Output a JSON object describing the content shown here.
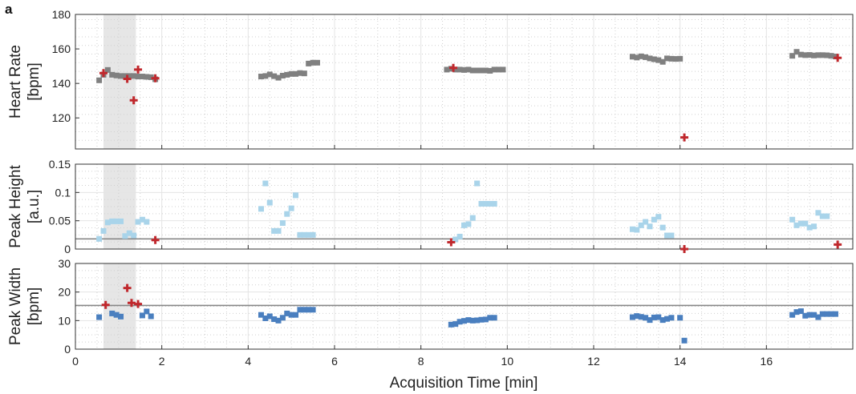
{
  "panel_label": "a",
  "colors": {
    "heart_rate": "#808080",
    "peak_height": "#a9d4ea",
    "peak_width": "#4a7fbf",
    "outlier": "#c0282d",
    "threshold": "#888888",
    "shaded_region": "#e6e6e6"
  },
  "chart_data": [
    {
      "type": "scatter",
      "ylabel": [
        "Heart Rate",
        "[bpm]"
      ],
      "ylim": [
        102,
        180
      ],
      "yticks": [
        120,
        140,
        160,
        180
      ],
      "ytick_labels": [
        "120",
        "140",
        "160",
        "180"
      ],
      "xlim": [
        0,
        18
      ],
      "grid": true,
      "shaded_region": [
        0.65,
        1.4
      ],
      "series": [
        {
          "color": "#808080",
          "marker": "square",
          "x": [
            0.55,
            0.65,
            0.75,
            0.85,
            0.95,
            1.05,
            1.15,
            1.25,
            1.35,
            1.45,
            1.55,
            1.65,
            1.75,
            1.85,
            4.3,
            4.4,
            4.5,
            4.6,
            4.7,
            4.8,
            4.9,
            5.0,
            5.1,
            5.2,
            5.3,
            5.4,
            5.5,
            5.6,
            8.6,
            8.7,
            8.8,
            8.9,
            9.0,
            9.1,
            9.2,
            9.3,
            9.4,
            9.5,
            9.6,
            9.7,
            9.8,
            9.9,
            12.9,
            13.0,
            13.1,
            13.2,
            13.3,
            13.4,
            13.5,
            13.6,
            13.7,
            13.8,
            13.9,
            14.0,
            16.6,
            16.7,
            16.8,
            16.9,
            17.0,
            17.1,
            17.2,
            17.3,
            17.4,
            17.5,
            17.6
          ],
          "y": [
            141.8,
            145,
            147.8,
            145,
            144.6,
            144.3,
            144.3,
            144.3,
            144.3,
            144,
            144,
            143.8,
            143.6,
            142.4,
            144,
            144.3,
            145.2,
            144.2,
            143.3,
            144.5,
            145,
            145.5,
            145.5,
            146,
            145.8,
            151.5,
            152,
            152,
            148,
            148.5,
            148,
            148,
            147.8,
            148,
            147.5,
            147.5,
            147.5,
            147.5,
            147.3,
            148,
            148,
            148,
            155.5,
            155,
            155.7,
            155.2,
            154.5,
            154,
            153.5,
            152.5,
            154.5,
            154.3,
            154.2,
            154.3,
            156,
            158.3,
            156.7,
            156.4,
            156.5,
            156.2,
            156.4,
            156.4,
            156.3,
            156,
            155.6
          ]
        },
        {
          "color": "#c0282d",
          "marker": "plus",
          "x": [
            0.65,
            1.2,
            1.35,
            1.45,
            1.85,
            8.75,
            14.1,
            17.65
          ],
          "y": [
            146,
            142.6,
            130.2,
            148,
            143,
            149,
            108.7,
            154.8
          ]
        }
      ]
    },
    {
      "type": "scatter",
      "ylabel": [
        "Peak Height",
        "[a.u.]"
      ],
      "ylim": [
        0,
        0.15
      ],
      "yticks": [
        0,
        0.05,
        0.1,
        0.15
      ],
      "ytick_labels": [
        "0",
        "0.05",
        "0.1",
        "0.15"
      ],
      "xlim": [
        0,
        18
      ],
      "grid": true,
      "shaded_region": [
        0.65,
        1.4
      ],
      "threshold_y": 0.018,
      "series": [
        {
          "color": "#a9d4ea",
          "marker": "square",
          "x": [
            0.55,
            0.65,
            0.75,
            0.85,
            0.95,
            1.05,
            1.15,
            1.25,
            1.35,
            1.45,
            1.55,
            1.65,
            4.3,
            4.4,
            4.5,
            4.6,
            4.7,
            4.8,
            4.9,
            5.0,
            5.1,
            5.2,
            5.3,
            5.4,
            5.5,
            8.8,
            8.9,
            9.0,
            9.1,
            9.2,
            9.3,
            9.4,
            9.5,
            9.6,
            9.7,
            12.9,
            13.0,
            13.1,
            13.2,
            13.3,
            13.4,
            13.5,
            13.6,
            13.7,
            13.8,
            16.6,
            16.7,
            16.8,
            16.9,
            17.0,
            17.1,
            17.2,
            17.3,
            17.4
          ],
          "y": [
            0.018,
            0.032,
            0.047,
            0.049,
            0.049,
            0.049,
            0.023,
            0.028,
            0.024,
            0.048,
            0.052,
            0.048,
            0.071,
            0.116,
            0.082,
            0.032,
            0.032,
            0.046,
            0.062,
            0.072,
            0.095,
            0.025,
            0.025,
            0.025,
            0.025,
            0.017,
            0.022,
            0.042,
            0.044,
            0.055,
            0.116,
            0.08,
            0.08,
            0.08,
            0.08,
            0.035,
            0.034,
            0.042,
            0.048,
            0.04,
            0.052,
            0.057,
            0.038,
            0.024,
            0.024,
            0.052,
            0.042,
            0.045,
            0.045,
            0.038,
            0.04,
            0.064,
            0.058,
            0.058
          ]
        },
        {
          "color": "#c0282d",
          "marker": "plus",
          "x": [
            1.85,
            8.7,
            14.1,
            17.65
          ],
          "y": [
            0.016,
            0.012,
            0,
            0.008
          ]
        }
      ]
    },
    {
      "type": "scatter",
      "ylabel": [
        "Peak Width",
        "[bpm]"
      ],
      "ylim": [
        0,
        30
      ],
      "yticks": [
        0,
        10,
        20,
        30
      ],
      "ytick_labels": [
        "0",
        "10",
        "20",
        "30"
      ],
      "xlim": [
        0,
        18
      ],
      "xticks": [
        0,
        2,
        4,
        6,
        8,
        10,
        12,
        14,
        16
      ],
      "xtick_labels": [
        "0",
        "2",
        "4",
        "6",
        "8",
        "10",
        "12",
        "14",
        "16"
      ],
      "xlabel": "Acquisition Time [min]",
      "grid": true,
      "shaded_region": [
        0.65,
        1.4
      ],
      "threshold_y": 15.3,
      "series": [
        {
          "color": "#4a7fbf",
          "marker": "square",
          "x": [
            0.55,
            0.85,
            0.95,
            1.05,
            1.55,
            1.65,
            1.75,
            4.3,
            4.4,
            4.5,
            4.6,
            4.7,
            4.8,
            4.9,
            5.0,
            5.1,
            5.2,
            5.3,
            5.4,
            5.5,
            8.7,
            8.8,
            8.9,
            9.0,
            9.1,
            9.2,
            9.3,
            9.4,
            9.5,
            9.6,
            9.7,
            12.9,
            13.0,
            13.1,
            13.2,
            13.3,
            13.4,
            13.5,
            13.6,
            13.7,
            13.8,
            14.0,
            14.1,
            16.6,
            16.7,
            16.8,
            16.9,
            17.0,
            17.1,
            17.2,
            17.3,
            17.4,
            17.5,
            17.6
          ],
          "y": [
            11.2,
            12.5,
            12,
            11.4,
            11.8,
            13.2,
            11.5,
            12,
            10.8,
            11.5,
            10.5,
            10,
            11,
            12.5,
            12,
            12,
            13.8,
            13.8,
            13.8,
            13.8,
            8.6,
            8.8,
            9.6,
            9.9,
            10.2,
            10,
            10.1,
            10.3,
            10.4,
            11,
            11,
            11.2,
            11.6,
            11.3,
            11,
            10.2,
            11.1,
            11.2,
            10.2,
            10.6,
            11,
            11,
            3,
            12,
            13,
            13.3,
            11.7,
            12,
            12,
            11.2,
            12.3,
            12.3,
            12.3,
            12.3
          ]
        },
        {
          "color": "#c0282d",
          "marker": "plus",
          "x": [
            0.7,
            1.2,
            1.3,
            1.45
          ],
          "y": [
            15.5,
            21.4,
            16.2,
            15.8
          ]
        }
      ]
    }
  ]
}
